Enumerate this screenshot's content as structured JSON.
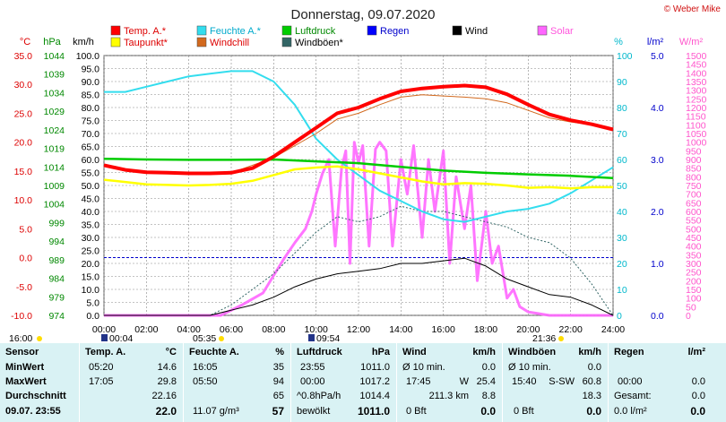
{
  "title": "Donnerstag, 09.07.2020",
  "copyright": "© Weber Mike",
  "colors": {
    "temp": "#ff0000",
    "humidity": "#33ddee",
    "pressure": "#00cc00",
    "rain": "#0000ff",
    "wind": "#000000",
    "solar": "#ff66ff",
    "dewpoint": "#ffff00",
    "windchill": "#d2691e",
    "gust": "#336666",
    "grid": "#888888",
    "table_bg": "#d9f2f4"
  },
  "legend": [
    {
      "label": "Temp. A.*",
      "color": "#ff0000",
      "text_color": "#dd0000"
    },
    {
      "label": "Feuchte A.*",
      "color": "#33ddee",
      "text_color": "#00aacc"
    },
    {
      "label": "Luftdruck",
      "color": "#00cc00",
      "text_color": "#008800"
    },
    {
      "label": "Regen",
      "color": "#0000ff",
      "text_color": "#0000cc"
    },
    {
      "label": "Wind",
      "color": "#000000",
      "text_color": "#000000"
    },
    {
      "label": "Solar",
      "color": "#ff66ff",
      "text_color": "#ff55dd"
    },
    {
      "label": "Taupunkt*",
      "color": "#ffff00",
      "text_color": "#dd0000"
    },
    {
      "label": "Windchill",
      "color": "#d2691e",
      "text_color": "#dd0000"
    },
    {
      "label": "Windböen*",
      "color": "#336666",
      "text_color": "#000000"
    }
  ],
  "axis_units": {
    "temp": "°C",
    "pressure": "hPa",
    "wind": "km/h",
    "humidity": "%",
    "rain": "l/m²",
    "solar": "W/m²"
  },
  "chart_data": {
    "type": "line",
    "x_ticks": [
      "00:00",
      "02:00",
      "04:00",
      "06:00",
      "08:00",
      "10:00",
      "12:00",
      "14:00",
      "16:00",
      "18:00",
      "20:00",
      "22:00",
      "24:00"
    ],
    "x_range": [
      0,
      24
    ],
    "axes": {
      "temp": {
        "range": [
          -10,
          35
        ],
        "ticks": [
          "35.0",
          "30.0",
          "25.0",
          "20.0",
          "15.0",
          "10.0",
          "5.0",
          "0.0",
          "-5.0",
          "-10.0"
        ]
      },
      "pressure": {
        "range": [
          974,
          1044
        ],
        "ticks": [
          "1044",
          "1039",
          "1034",
          "1029",
          "1024",
          "1019",
          "1014",
          "1009",
          "1004",
          "999",
          "994",
          "989",
          "984",
          "979",
          "974"
        ]
      },
      "wind": {
        "range": [
          0,
          100
        ],
        "ticks": [
          "100.0",
          "95.0",
          "90.0",
          "85.0",
          "80.0",
          "75.0",
          "70.0",
          "65.0",
          "60.0",
          "55.0",
          "50.0",
          "45.0",
          "40.0",
          "35.0",
          "30.0",
          "25.0",
          "20.0",
          "15.0",
          "10.0",
          "5.0",
          "0.0"
        ]
      },
      "humidity": {
        "range": [
          0,
          100
        ],
        "ticks": [
          "100",
          "90",
          "80",
          "70",
          "60",
          "50",
          "40",
          "30",
          "20",
          "10",
          "0"
        ]
      },
      "rain": {
        "range": [
          0,
          5
        ],
        "ticks": [
          "5.0",
          "4.0",
          "3.0",
          "2.0",
          "1.0",
          "0.0"
        ]
      },
      "solar": {
        "range": [
          0,
          1500
        ],
        "ticks": [
          "1500",
          "1450",
          "1400",
          "1350",
          "1300",
          "1250",
          "1200",
          "1150",
          "1100",
          "1050",
          "1000",
          "950",
          "900",
          "850",
          "800",
          "750",
          "700",
          "650",
          "600",
          "550",
          "500",
          "450",
          "400",
          "350",
          "300",
          "250",
          "200",
          "150",
          "100",
          "50",
          "0"
        ]
      }
    },
    "grid": true,
    "legend_position": "top",
    "series": [
      {
        "name": "Temp. A.*",
        "axis": "temp",
        "x": [
          0,
          1,
          2,
          3,
          4,
          5,
          6,
          7,
          8,
          9,
          10,
          11,
          12,
          13,
          14,
          15,
          16,
          17,
          18,
          19,
          20,
          21,
          22,
          23,
          24
        ],
        "y": [
          16.0,
          15.2,
          14.8,
          14.7,
          14.6,
          14.6,
          14.7,
          15.5,
          17.5,
          20.0,
          22.5,
          25.0,
          26.0,
          27.5,
          28.8,
          29.3,
          29.6,
          29.8,
          29.5,
          28.3,
          26.5,
          24.8,
          23.8,
          23.1,
          22.2
        ]
      },
      {
        "name": "Feuchte A.*",
        "axis": "humidity",
        "x": [
          0,
          1,
          2,
          3,
          4,
          5,
          6,
          7,
          8,
          9,
          10,
          11,
          12,
          13,
          14,
          15,
          16,
          17,
          18,
          19,
          20,
          21,
          22,
          23,
          24
        ],
        "y": [
          86,
          86,
          88,
          90,
          92,
          93,
          94,
          94,
          90,
          81,
          68,
          60,
          54,
          48,
          44,
          40,
          37,
          36,
          38,
          40,
          41,
          43,
          47,
          52,
          57
        ]
      },
      {
        "name": "Luftdruck",
        "axis": "pressure",
        "x": [
          0,
          2,
          4,
          6,
          8,
          10,
          12,
          14,
          16,
          18,
          20,
          22,
          24
        ],
        "y": [
          1016.2,
          1016.0,
          1015.9,
          1015.9,
          1016.0,
          1015.5,
          1015.0,
          1014.0,
          1013.0,
          1012.4,
          1012.0,
          1011.6,
          1011.0
        ]
      },
      {
        "name": "Taupunkt*",
        "axis": "temp",
        "x": [
          0,
          1,
          2,
          3,
          4,
          5,
          6,
          7,
          8,
          9,
          10,
          11,
          12,
          13,
          14,
          15,
          16,
          17,
          18,
          19,
          20,
          21,
          22,
          23,
          24
        ],
        "y": [
          13.5,
          13.1,
          12.7,
          12.6,
          12.5,
          12.6,
          12.8,
          13.3,
          14.3,
          15.3,
          15.6,
          15.8,
          15.3,
          14.6,
          13.9,
          13.2,
          12.7,
          12.9,
          12.8,
          12.5,
          12.1,
          12.2,
          12.0,
          12.2,
          12.2
        ]
      },
      {
        "name": "Windchill",
        "axis": "temp",
        "x": [
          0,
          2,
          4,
          6,
          8,
          10,
          11,
          12,
          13,
          14,
          15,
          16,
          17,
          18,
          19,
          20,
          21,
          22,
          23,
          24
        ],
        "y": [
          16.0,
          14.8,
          14.6,
          14.7,
          17.3,
          21.5,
          24.0,
          25.0,
          26.5,
          27.8,
          28.2,
          28.0,
          27.8,
          27.5,
          26.8,
          25.5,
          24.2,
          23.5,
          23.0,
          22.2
        ]
      },
      {
        "name": "Wind",
        "axis": "wind",
        "x": [
          0,
          5,
          6,
          7,
          8,
          9,
          10,
          11,
          12,
          13,
          14,
          15,
          16,
          17,
          18,
          19,
          20,
          21,
          22,
          23,
          24
        ],
        "y": [
          0,
          0,
          2,
          4,
          7,
          11,
          14,
          16,
          17,
          18,
          20,
          20,
          21,
          22,
          19,
          14,
          11,
          8,
          7,
          4,
          0
        ]
      },
      {
        "name": "Windböen*",
        "axis": "wind",
        "x": [
          0,
          5,
          6,
          7,
          8,
          9,
          10,
          11,
          12,
          13,
          14,
          15,
          16,
          17,
          18,
          19,
          20,
          21,
          22,
          23,
          24
        ],
        "y": [
          0,
          0,
          4,
          10,
          16,
          24,
          32,
          38,
          36,
          38,
          42,
          40,
          40,
          38,
          36,
          34,
          30,
          28,
          22,
          12,
          0
        ]
      },
      {
        "name": "Solar",
        "axis": "solar",
        "x": [
          0,
          5.5,
          6.5,
          7.5,
          8,
          8.5,
          9,
          9.5,
          9.8,
          10,
          10.3,
          10.6,
          10.9,
          11.2,
          11.4,
          11.6,
          11.8,
          12,
          12.2,
          12.5,
          12.8,
          13,
          13.3,
          13.6,
          14,
          14.3,
          14.6,
          15,
          15.3,
          15.6,
          16,
          16.3,
          16.6,
          17,
          17.3,
          17.6,
          18,
          18.3,
          18.6,
          19,
          19.3,
          19.6,
          20,
          21,
          24
        ],
        "y": [
          0,
          0,
          60,
          130,
          230,
          330,
          420,
          500,
          600,
          700,
          820,
          900,
          400,
          850,
          950,
          300,
          1000,
          880,
          980,
          400,
          960,
          1000,
          950,
          400,
          900,
          700,
          980,
          450,
          900,
          600,
          950,
          300,
          800,
          500,
          750,
          200,
          600,
          300,
          400,
          100,
          150,
          50,
          20,
          0,
          0
        ]
      }
    ]
  },
  "sun": {
    "rise": "05:35",
    "set": "21:36",
    "marker1": "00:04",
    "marker2": "09:54",
    "left_time": "16:00"
  },
  "table": {
    "row_labels": [
      "Sensor",
      "MinWert",
      "MaxWert",
      "Durchschnitt",
      "09.07. 23:55"
    ],
    "temp": {
      "header": "Temp. A.",
      "unit": "°C",
      "rows": [
        [
          "05:20",
          "14.6"
        ],
        [
          "17:05",
          "29.8"
        ],
        [
          "",
          "22.16"
        ],
        [
          "",
          "22.0"
        ]
      ]
    },
    "hum": {
      "header": "Feuchte A.",
      "unit": "%",
      "rows": [
        [
          "16:05",
          "35"
        ],
        [
          "05:50",
          "94"
        ],
        [
          "",
          "65"
        ],
        [
          "11.07 g/m³",
          "57"
        ]
      ]
    },
    "press": {
      "header": "Luftdruck",
      "unit": "hPa",
      "rows": [
        [
          "23:55",
          "1011.0"
        ],
        [
          "00:00",
          "1017.2"
        ],
        [
          "^0.8hPa/h",
          "1014.4"
        ],
        [
          "bewölkt",
          "1011.0"
        ]
      ]
    },
    "wind": {
      "header": "Wind",
      "unit": "km/h",
      "rows": [
        [
          "Ø 10 min.",
          "",
          "0.0"
        ],
        [
          "17:45",
          "W",
          "25.4"
        ],
        [
          "",
          "211.3 km",
          "8.8"
        ],
        [
          "0 Bft",
          "",
          "0.0"
        ]
      ]
    },
    "gust": {
      "header": "Windböen",
      "unit": "km/h",
      "rows": [
        [
          "Ø 10 min.",
          "",
          "0.0"
        ],
        [
          "15:40",
          "S-SW",
          "60.8"
        ],
        [
          "",
          "",
          "18.3"
        ],
        [
          "0 Bft",
          "",
          "0.0"
        ]
      ]
    },
    "rain": {
      "header": "Regen",
      "unit": "l/m²",
      "rows": [
        [
          "",
          ""
        ],
        [
          "00:00",
          "0.0"
        ],
        [
          "Gesamt:",
          "0.0"
        ],
        [
          "0.0 l/m²",
          "0.0"
        ]
      ]
    }
  }
}
